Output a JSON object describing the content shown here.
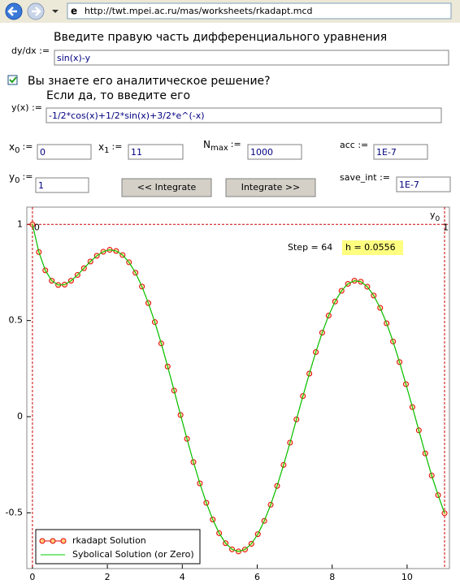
{
  "browser": {
    "url": "http://twt.mpei.ac.ru/mas/worksheets/rkadapt.mcd"
  },
  "form": {
    "equation_prompt": "Введите правую часть дифференциального уравнения",
    "dydx": {
      "label": "dy/dx :=",
      "value": "sin(x)-y"
    },
    "analytic_question": "Вы знаете его аналитическое решение?",
    "analytic_checked": true,
    "analytic_prompt": "Если да, то введите его",
    "yx": {
      "label": "y(x) :=",
      "value": "-1/2*cos(x)+1/2*sin(x)+3/2*e^(-x)"
    },
    "x0": {
      "name": "x",
      "sub": "0",
      "assign": ":=",
      "value": "0"
    },
    "x1": {
      "name": "x",
      "sub": "1",
      "assign": ":=",
      "value": "11"
    },
    "nmax": {
      "name": "N",
      "sub": "max",
      "assign": ":=",
      "value": "1000"
    },
    "acc": {
      "label": "acc :=",
      "value": "1E-7"
    },
    "y0": {
      "name": "y",
      "sub": "0",
      "assign": ":=",
      "value": "1"
    },
    "save_int": {
      "label": "save_int :=",
      "value": "1E-7"
    },
    "buttons": [
      "<< Integrate",
      "Integrate >>"
    ]
  },
  "chart_data": {
    "type": "line",
    "x": [
      0,
      0.172,
      0.344,
      0.516,
      0.688,
      0.859,
      1.031,
      1.203,
      1.375,
      1.547,
      1.719,
      1.891,
      2.063,
      2.234,
      2.406,
      2.578,
      2.75,
      2.922,
      3.094,
      3.266,
      3.438,
      3.609,
      3.781,
      3.953,
      4.125,
      4.297,
      4.469,
      4.641,
      4.813,
      4.984,
      5.156,
      5.328,
      5.5,
      5.672,
      5.844,
      6.016,
      6.188,
      6.359,
      6.531,
      6.703,
      6.875,
      7.047,
      7.219,
      7.391,
      7.563,
      7.734,
      7.906,
      8.078,
      8.25,
      8.422,
      8.594,
      8.766,
      8.938,
      9.109,
      9.281,
      9.453,
      9.625,
      9.797,
      9.969,
      10.141,
      10.313,
      10.484,
      10.656,
      10.828,
      11
    ],
    "series": [
      {
        "name": "rkadapt Solution",
        "color": "#e00000",
        "marker": "circle",
        "values": [
          1,
          0.856,
          0.761,
          0.707,
          0.685,
          0.687,
          0.707,
          0.737,
          0.772,
          0.807,
          0.837,
          0.858,
          0.868,
          0.862,
          0.841,
          0.803,
          0.749,
          0.677,
          0.591,
          0.492,
          0.381,
          0.261,
          0.136,
          0.009,
          -0.115,
          -0.236,
          -0.347,
          -0.448,
          -0.535,
          -0.606,
          -0.658,
          -0.69,
          -0.701,
          -0.691,
          -0.661,
          -0.611,
          -0.542,
          -0.458,
          -0.36,
          -0.251,
          -0.135,
          -0.014,
          0.107,
          0.224,
          0.336,
          0.437,
          0.526,
          0.599,
          0.655,
          0.691,
          0.707,
          0.702,
          0.676,
          0.63,
          0.566,
          0.486,
          0.391,
          0.284,
          0.169,
          0.05,
          -0.071,
          -0.191,
          -0.306,
          -0.408,
          -0.502
        ]
      },
      {
        "name": "Sybolical Solution (or Zero)",
        "color": "#00cc00",
        "values": [
          1,
          0.856,
          0.761,
          0.707,
          0.685,
          0.687,
          0.707,
          0.737,
          0.772,
          0.807,
          0.837,
          0.858,
          0.868,
          0.862,
          0.841,
          0.803,
          0.749,
          0.677,
          0.591,
          0.492,
          0.381,
          0.261,
          0.136,
          0.009,
          -0.115,
          -0.236,
          -0.347,
          -0.448,
          -0.535,
          -0.606,
          -0.658,
          -0.69,
          -0.701,
          -0.691,
          -0.661,
          -0.611,
          -0.542,
          -0.458,
          -0.36,
          -0.251,
          -0.135,
          -0.014,
          0.107,
          0.224,
          0.336,
          0.437,
          0.526,
          0.599,
          0.655,
          0.691,
          0.707,
          0.702,
          0.676,
          0.63,
          0.566,
          0.486,
          0.391,
          0.284,
          0.169,
          0.05,
          -0.071,
          -0.191,
          -0.306,
          -0.408,
          -0.502
        ]
      }
    ],
    "xlim": [
      -0.15,
      11.13
    ],
    "ylim": [
      -0.79,
      1.09
    ],
    "xticks": [
      0,
      2,
      4,
      6,
      8,
      10
    ],
    "yticks": [
      -0.5,
      0,
      0.5,
      1
    ],
    "ref_y": 1,
    "ref_x": [
      0,
      11
    ],
    "ref_color": "#cc0000",
    "ref_label": {
      "name": "y",
      "sub": "0"
    },
    "corner_labels": [
      "0",
      "1"
    ],
    "step_label": "Step = 64",
    "h_label": "h = 0.0556",
    "legend": "lower left"
  }
}
